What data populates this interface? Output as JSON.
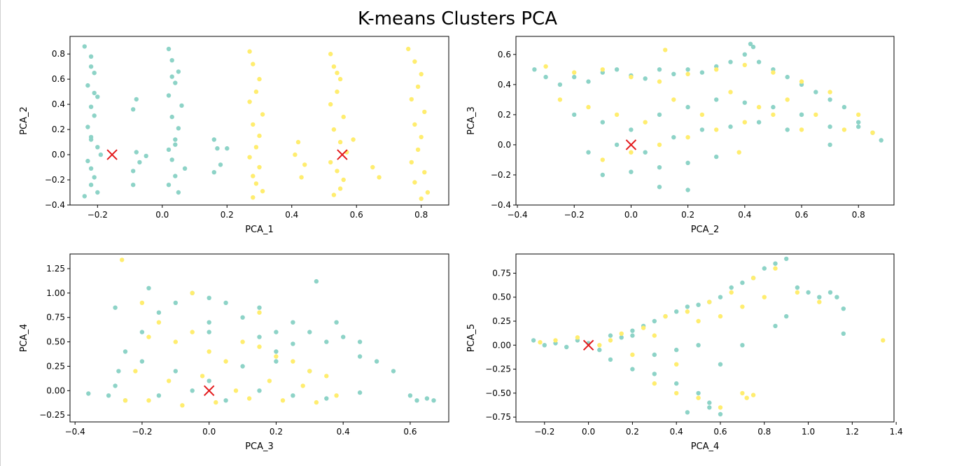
{
  "figure": {
    "title": "K-means Clusters PCA"
  },
  "colors": {
    "cluster_0": "#8dd3c7",
    "cluster_1": "#ffed6f",
    "centroid": "#e31a1c"
  },
  "chart_data": [
    {
      "type": "scatter",
      "title": "",
      "xlabel": "PCA_1",
      "ylabel": "PCA_2",
      "xlim": [
        -0.285,
        0.885
      ],
      "ylim": [
        -0.4,
        0.94
      ],
      "xticks": [
        -0.2,
        0.0,
        0.2,
        0.4,
        0.6,
        0.8
      ],
      "yticks": [
        -0.4,
        -0.2,
        0.0,
        0.2,
        0.4,
        0.6,
        0.8
      ],
      "xtick_labels": [
        "−0.2",
        "0.0",
        "0.2",
        "0.4",
        "0.6",
        "0.8"
      ],
      "ytick_labels": [
        "−0.4",
        "−0.2",
        "0.0",
        "0.2",
        "0.4",
        "0.6",
        "0.8"
      ],
      "grid": false,
      "clusters": [
        {
          "cluster": 0,
          "color": "#8dd3c7",
          "x": [
            -0.24,
            -0.22,
            -0.21,
            -0.23,
            -0.2,
            -0.22,
            -0.21,
            -0.23,
            -0.22,
            -0.2,
            -0.19,
            -0.23,
            -0.22,
            -0.21,
            -0.22,
            -0.2,
            -0.24,
            -0.22,
            -0.21,
            -0.22,
            -0.08,
            -0.09,
            -0.07,
            -0.09,
            -0.05,
            -0.08,
            -0.09,
            0.02,
            0.03,
            0.05,
            0.04,
            0.02,
            0.06,
            0.03,
            0.05,
            0.04,
            0.02,
            0.03,
            0.07,
            0.04,
            0.02,
            0.05,
            0.03,
            0.04,
            0.16,
            0.17,
            0.18,
            0.16,
            0.2
          ],
          "y": [
            0.86,
            0.78,
            0.65,
            0.55,
            0.46,
            0.38,
            0.31,
            0.22,
            0.14,
            0.06,
            0.0,
            -0.05,
            -0.11,
            -0.18,
            -0.24,
            -0.3,
            -0.33,
            0.7,
            0.49,
            0.12,
            0.44,
            0.36,
            -0.06,
            -0.13,
            -0.01,
            0.02,
            -0.24,
            0.84,
            0.75,
            0.66,
            0.57,
            0.47,
            0.39,
            0.3,
            0.21,
            0.12,
            0.04,
            -0.04,
            -0.11,
            -0.17,
            -0.24,
            -0.3,
            0.62,
            0.08,
            0.12,
            0.05,
            -0.08,
            -0.14,
            0.05
          ]
        },
        {
          "cluster": 1,
          "color": "#ffed6f",
          "x": [
            0.27,
            0.28,
            0.3,
            0.29,
            0.27,
            0.31,
            0.28,
            0.3,
            0.29,
            0.27,
            0.3,
            0.28,
            0.29,
            0.31,
            0.28,
            0.42,
            0.41,
            0.44,
            0.43,
            0.52,
            0.53,
            0.55,
            0.54,
            0.52,
            0.56,
            0.53,
            0.55,
            0.57,
            0.52,
            0.54,
            0.56,
            0.55,
            0.53,
            0.54,
            0.59,
            0.65,
            0.67,
            0.76,
            0.78,
            0.8,
            0.79,
            0.77,
            0.81,
            0.78,
            0.8,
            0.79,
            0.77,
            0.81,
            0.78,
            0.82,
            0.8
          ],
          "y": [
            0.82,
            0.72,
            0.6,
            0.5,
            0.42,
            0.32,
            0.24,
            0.15,
            0.06,
            -0.02,
            -0.1,
            -0.17,
            -0.23,
            -0.29,
            -0.34,
            0.1,
            0.0,
            -0.08,
            -0.18,
            0.8,
            0.7,
            0.6,
            0.5,
            0.4,
            0.3,
            0.2,
            0.1,
            0.02,
            -0.06,
            -0.13,
            -0.2,
            -0.27,
            -0.32,
            0.65,
            0.12,
            -0.1,
            -0.18,
            0.84,
            0.74,
            0.64,
            0.54,
            0.44,
            0.34,
            0.24,
            0.14,
            0.04,
            -0.06,
            -0.14,
            -0.22,
            -0.3,
            -0.35
          ]
        }
      ],
      "centroids": [
        {
          "x": -0.155,
          "y": 0.0
        },
        {
          "x": 0.556,
          "y": 0.0
        }
      ]
    },
    {
      "type": "scatter",
      "title": "",
      "xlabel": "PCA_2",
      "ylabel": "PCA_3",
      "xlim": [
        -0.405,
        0.925
      ],
      "ylim": [
        -0.4,
        0.72
      ],
      "xticks": [
        -0.4,
        -0.2,
        0.0,
        0.2,
        0.4,
        0.6,
        0.8
      ],
      "yticks": [
        -0.4,
        -0.2,
        0.0,
        0.2,
        0.4,
        0.6
      ],
      "xtick_labels": [
        "−0.4",
        "−0.2",
        "0.0",
        "0.2",
        "0.4",
        "0.6",
        "0.8"
      ],
      "ytick_labels": [
        "−0.4",
        "−0.2",
        "0.0",
        "0.2",
        "0.4",
        "0.6"
      ],
      "grid": false,
      "clusters": [
        {
          "cluster": 0,
          "color": "#8dd3c7",
          "x": [
            -0.34,
            -0.3,
            -0.25,
            -0.2,
            -0.15,
            -0.1,
            -0.05,
            0.0,
            0.05,
            0.1,
            0.15,
            0.2,
            0.25,
            0.3,
            0.35,
            0.4,
            0.45,
            0.5,
            0.55,
            0.6,
            0.65,
            0.7,
            0.75,
            0.8,
            0.85,
            0.88,
            -0.2,
            -0.1,
            0.0,
            0.1,
            0.2,
            0.3,
            0.4,
            0.5,
            0.6,
            0.7,
            -0.15,
            -0.05,
            0.05,
            0.15,
            0.25,
            0.35,
            0.45,
            0.55,
            -0.1,
            0.0,
            0.1,
            0.2,
            0.3,
            0.42,
            0.43,
            0.2,
            0.1,
            0.6,
            0.8,
            0.7
          ],
          "y": [
            0.5,
            0.45,
            0.4,
            0.45,
            0.42,
            0.48,
            0.5,
            0.46,
            0.44,
            0.5,
            0.47,
            0.5,
            0.48,
            0.52,
            0.55,
            0.6,
            0.55,
            0.5,
            0.45,
            0.4,
            0.35,
            0.3,
            0.25,
            0.15,
            0.08,
            0.03,
            0.2,
            0.15,
            0.1,
            0.2,
            0.25,
            0.3,
            0.28,
            0.25,
            0.2,
            0.12,
            -0.05,
            0.0,
            -0.05,
            0.05,
            0.1,
            0.12,
            0.15,
            0.1,
            -0.2,
            -0.18,
            -0.15,
            -0.12,
            -0.08,
            0.67,
            0.65,
            -0.3,
            -0.28,
            0.2,
            0.12,
            0.0
          ]
        },
        {
          "cluster": 1,
          "color": "#ffed6f",
          "x": [
            -0.3,
            -0.2,
            -0.1,
            0.0,
            0.1,
            0.2,
            0.3,
            0.4,
            0.5,
            0.6,
            0.7,
            0.8,
            -0.25,
            -0.15,
            -0.05,
            0.05,
            0.15,
            0.25,
            0.35,
            0.45,
            0.55,
            0.65,
            0.75,
            0.85,
            -0.1,
            0.0,
            0.1,
            0.2,
            0.3,
            0.4,
            0.5,
            0.6,
            0.12,
            0.38
          ],
          "y": [
            0.52,
            0.48,
            0.5,
            0.45,
            0.42,
            0.47,
            0.5,
            0.53,
            0.48,
            0.42,
            0.35,
            0.2,
            0.3,
            0.25,
            0.2,
            0.15,
            0.3,
            0.2,
            0.35,
            0.25,
            0.3,
            0.2,
            0.1,
            0.08,
            -0.1,
            -0.05,
            0.0,
            0.05,
            0.1,
            0.15,
            0.2,
            0.1,
            0.63,
            -0.05
          ]
        }
      ],
      "centroids": [
        {
          "x": 0.0,
          "y": 0.0
        }
      ]
    },
    {
      "type": "scatter",
      "title": "",
      "xlabel": "PCA_3",
      "ylabel": "PCA_4",
      "xlim": [
        -0.415,
        0.715
      ],
      "ylim": [
        -0.32,
        1.4
      ],
      "xticks": [
        -0.4,
        -0.2,
        0.0,
        0.2,
        0.4,
        0.6
      ],
      "yticks": [
        -0.25,
        0.0,
        0.25,
        0.5,
        0.75,
        1.0,
        1.25
      ],
      "xtick_labels": [
        "−0.4",
        "−0.2",
        "0.0",
        "0.2",
        "0.4",
        "0.6"
      ],
      "ytick_labels": [
        "−0.25",
        "0.00",
        "0.25",
        "0.50",
        "0.75",
        "1.00",
        "1.25"
      ],
      "grid": false,
      "clusters": [
        {
          "cluster": 0,
          "color": "#8dd3c7",
          "x": [
            -0.36,
            -0.3,
            -0.28,
            -0.25,
            -0.2,
            -0.15,
            -0.1,
            -0.05,
            0.0,
            0.05,
            0.1,
            0.15,
            0.2,
            0.25,
            0.3,
            0.35,
            0.4,
            0.45,
            0.5,
            0.55,
            0.6,
            0.62,
            0.65,
            0.67,
            -0.27,
            -0.2,
            -0.1,
            0.0,
            0.1,
            0.2,
            0.3,
            -0.25,
            -0.15,
            -0.05,
            0.05,
            0.15,
            0.25,
            0.35,
            0.45,
            -0.18,
            0.0,
            0.15,
            0.25,
            0.32,
            0.38,
            0.45,
            -0.28,
            0.0,
            0.2
          ],
          "y": [
            -0.03,
            -0.05,
            0.05,
            0.4,
            0.6,
            0.8,
            0.9,
            1.0,
            0.7,
            0.9,
            0.75,
            0.85,
            0.6,
            0.7,
            0.6,
            0.5,
            0.55,
            0.5,
            0.3,
            0.2,
            -0.05,
            -0.1,
            -0.08,
            -0.1,
            0.2,
            0.3,
            0.2,
            0.1,
            0.25,
            0.3,
            0.2,
            -0.1,
            -0.05,
            0.0,
            -0.1,
            0.0,
            -0.05,
            -0.08,
            -0.02,
            1.05,
            0.95,
            0.55,
            0.48,
            1.12,
            0.7,
            0.35,
            0.85,
            0.6,
            0.4
          ]
        },
        {
          "cluster": 1,
          "color": "#ffed6f",
          "x": [
            -0.26,
            -0.2,
            -0.15,
            -0.1,
            -0.05,
            0.0,
            0.05,
            0.1,
            0.15,
            0.2,
            0.25,
            0.3,
            0.35,
            -0.22,
            -0.12,
            -0.02,
            0.08,
            0.18,
            0.28,
            0.38,
            -0.18,
            -0.08,
            0.02,
            0.12,
            0.22,
            0.32,
            -0.25,
            -0.05,
            0.15,
            -0.18
          ],
          "y": [
            1.34,
            0.9,
            0.7,
            0.5,
            0.6,
            0.4,
            0.3,
            0.5,
            0.45,
            0.35,
            0.3,
            0.2,
            0.15,
            0.2,
            0.1,
            0.15,
            0.0,
            0.1,
            0.05,
            -0.05,
            -0.1,
            -0.15,
            -0.12,
            -0.08,
            -0.1,
            -0.12,
            -0.1,
            1.0,
            0.8,
            0.55
          ]
        }
      ],
      "centroids": [
        {
          "x": 0.0,
          "y": 0.0
        }
      ]
    },
    {
      "type": "scatter",
      "title": "",
      "xlabel": "PCA_4",
      "ylabel": "PCA_5",
      "xlim": [
        -0.33,
        1.39
      ],
      "ylim": [
        -0.8,
        0.95
      ],
      "xticks": [
        -0.2,
        0.0,
        0.2,
        0.4,
        0.6,
        0.8,
        1.0,
        1.2,
        1.4
      ],
      "yticks": [
        -0.75,
        -0.5,
        -0.25,
        0.0,
        0.25,
        0.5,
        0.75
      ],
      "xtick_labels": [
        "−0.2",
        "0.0",
        "0.2",
        "0.4",
        "0.6",
        "0.8",
        "1.0",
        "1.2",
        "1.4"
      ],
      "ytick_labels": [
        "−0.75",
        "−0.50",
        "−0.25",
        "0.00",
        "0.25",
        "0.50",
        "0.75"
      ],
      "grid": false,
      "clusters": [
        {
          "cluster": 0,
          "color": "#8dd3c7",
          "x": [
            -0.25,
            -0.2,
            -0.15,
            -0.1,
            -0.05,
            0.0,
            0.05,
            0.1,
            0.15,
            0.2,
            0.25,
            0.3,
            0.35,
            0.4,
            0.45,
            0.5,
            0.55,
            0.6,
            0.65,
            0.7,
            0.75,
            0.8,
            0.85,
            0.9,
            0.95,
            1.0,
            1.05,
            1.1,
            1.13,
            1.16,
            1.16,
            0.1,
            0.2,
            0.3,
            0.4,
            0.5,
            0.6,
            0.7,
            0.2,
            0.3,
            0.4,
            0.5,
            0.55,
            0.45,
            0.85,
            0.9,
            0.55,
            0.6
          ],
          "y": [
            0.05,
            0.0,
            0.02,
            -0.02,
            0.05,
            0.02,
            -0.05,
            0.1,
            0.08,
            0.15,
            0.2,
            0.25,
            0.3,
            0.35,
            0.4,
            0.42,
            0.45,
            0.5,
            0.6,
            0.65,
            0.7,
            0.8,
            0.85,
            0.9,
            0.6,
            0.55,
            0.5,
            0.55,
            0.5,
            0.38,
            0.12,
            -0.15,
            -0.25,
            -0.3,
            -0.4,
            -0.5,
            -0.2,
            0.0,
            0.1,
            -0.1,
            -0.05,
            0.0,
            -0.6,
            -0.7,
            0.2,
            0.3,
            -0.65,
            -0.72
          ]
        },
        {
          "cluster": 1,
          "color": "#ffed6f",
          "x": [
            -0.22,
            -0.15,
            -0.05,
            0.05,
            0.15,
            0.25,
            0.35,
            0.45,
            0.55,
            0.65,
            0.75,
            0.85,
            0.95,
            1.05,
            0.1,
            0.2,
            0.3,
            0.4,
            0.5,
            0.6,
            0.7,
            0.8,
            0.3,
            0.4,
            0.5,
            0.6,
            0.7,
            0.72,
            0.75,
            1.34
          ],
          "y": [
            0.03,
            0.05,
            0.08,
            0.0,
            0.12,
            0.18,
            0.3,
            0.35,
            0.45,
            0.55,
            0.7,
            0.8,
            0.55,
            0.45,
            0.05,
            -0.1,
            0.1,
            -0.2,
            0.25,
            0.3,
            0.4,
            0.5,
            -0.4,
            -0.5,
            -0.55,
            -0.65,
            -0.5,
            -0.55,
            -0.52,
            0.05
          ]
        }
      ],
      "centroids": [
        {
          "x": 0.0,
          "y": 0.0
        }
      ]
    }
  ]
}
